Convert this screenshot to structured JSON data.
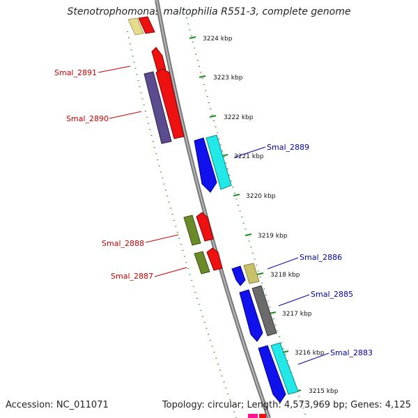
{
  "title": "Stenotrophomonas maltophilia R551-3, complete genome",
  "footer": {
    "accession": "Accession: NC_011071",
    "topology": "Topology: circular; Length: 4,573,969 bp; Genes: 4,125"
  },
  "colors": {
    "backbone": "#8a8a8a",
    "tick": "#1a8a1a",
    "label_forward": "#cc0000",
    "label_reverse": "#0000aa"
  },
  "scale": {
    "unit": "kbp",
    "ticks": [
      "3224 kbp",
      "3223 kbp",
      "3222 kbp",
      "3221 kbp",
      "3220 kbp",
      "3219 kbp",
      "3218 kbp",
      "3217 kbp",
      "3216 kbp",
      "3215 kbp"
    ]
  },
  "gene_labels": [
    {
      "text": "Smal_2891",
      "strand": "forward"
    },
    {
      "text": "Smal_2890",
      "strand": "forward"
    },
    {
      "text": "Smal_2889",
      "strand": "reverse"
    },
    {
      "text": "Smal_2888",
      "strand": "forward"
    },
    {
      "text": "Smal_2887",
      "strand": "forward"
    },
    {
      "text": "Smal_2886",
      "strand": "reverse"
    },
    {
      "text": "Smal_2885",
      "strand": "reverse"
    },
    {
      "text": "Smal_2883",
      "strand": "reverse"
    }
  ]
}
